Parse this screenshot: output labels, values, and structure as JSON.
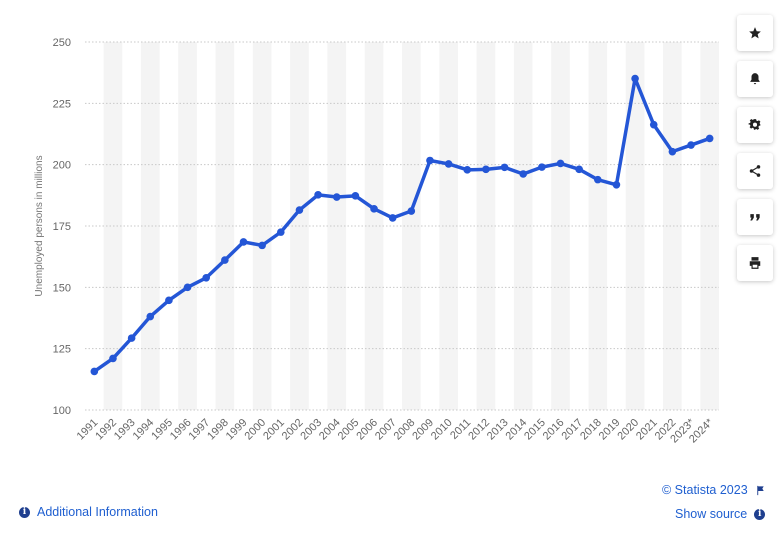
{
  "chart_data": {
    "type": "line",
    "ylabel": "Unemployed persons in millions",
    "ylim": [
      100,
      250
    ],
    "yticks": [
      100,
      125,
      150,
      175,
      200,
      225,
      250
    ],
    "grid": "horizontal dotted",
    "series_color": "#2456d6",
    "categories": [
      "1991",
      "1992",
      "1993",
      "1994",
      "1995",
      "1996",
      "1997",
      "1998",
      "1999",
      "2000",
      "2001",
      "2002",
      "2003",
      "2004",
      "2005",
      "2006",
      "2007",
      "2008",
      "2009",
      "2010",
      "2011",
      "2012",
      "2013",
      "2014",
      "2015",
      "2016",
      "2017",
      "2018",
      "2019",
      "2020",
      "2021",
      "2022",
      "2023*",
      "2024*"
    ],
    "values": [
      115.7,
      121.0,
      129.3,
      138.1,
      144.7,
      150.0,
      153.9,
      161.1,
      168.5,
      167.1,
      172.5,
      181.5,
      187.7,
      186.8,
      187.3,
      182.0,
      178.3,
      181.1,
      201.7,
      200.3,
      197.9,
      198.1,
      198.9,
      196.2,
      199.0,
      200.5,
      198.1,
      193.9,
      191.8,
      235.1,
      216.3,
      205.3,
      208.0,
      210.7
    ]
  },
  "sidebar": {
    "buttons": [
      {
        "name": "favorite-star-button",
        "icon": "star-icon"
      },
      {
        "name": "notification-bell-button",
        "icon": "bell-icon"
      },
      {
        "name": "settings-button",
        "icon": "gear-icon"
      },
      {
        "name": "share-button",
        "icon": "share-icon"
      },
      {
        "name": "cite-button",
        "icon": "quote-icon"
      },
      {
        "name": "print-button",
        "icon": "print-icon"
      }
    ]
  },
  "footer": {
    "additional_info": "Additional Information",
    "copyright": "© Statista 2023",
    "show_source": "Show source"
  }
}
